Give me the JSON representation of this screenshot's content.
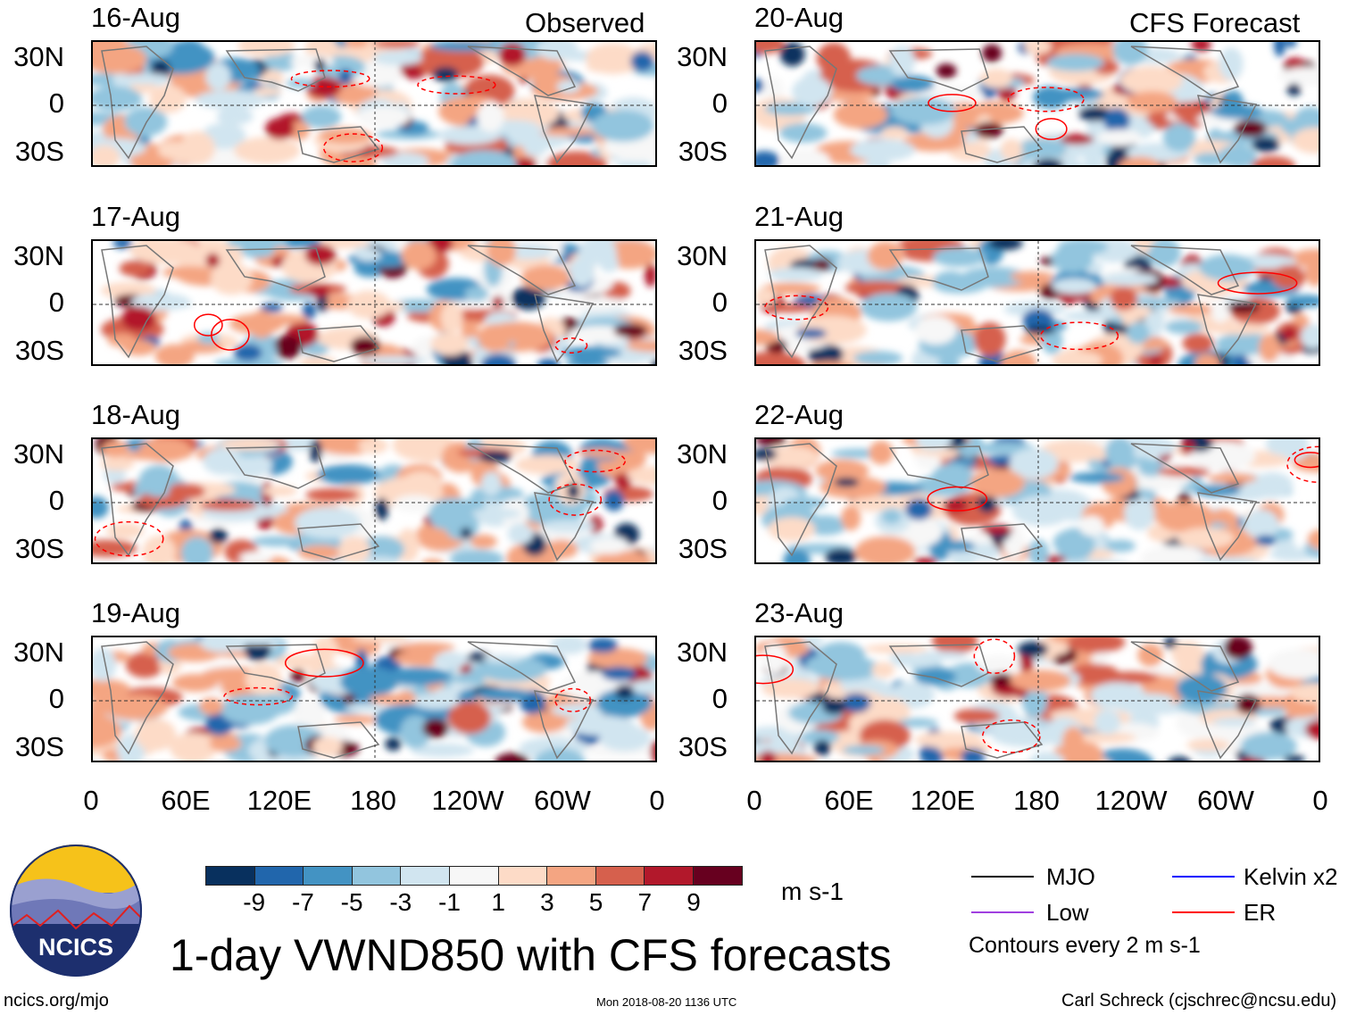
{
  "header": {
    "left_title": "Observed",
    "right_title": "CFS Forecast"
  },
  "panels_left": [
    {
      "date": "16-Aug"
    },
    {
      "date": "17-Aug"
    },
    {
      "date": "18-Aug"
    },
    {
      "date": "19-Aug"
    }
  ],
  "panels_right": [
    {
      "date": "20-Aug"
    },
    {
      "date": "21-Aug"
    },
    {
      "date": "22-Aug"
    },
    {
      "date": "23-Aug"
    }
  ],
  "y_axis": [
    "30N",
    "0",
    "30S"
  ],
  "x_axis": [
    "0",
    "60E",
    "120E",
    "180",
    "120W",
    "60W",
    "0"
  ],
  "colorbar": {
    "colors": [
      "#08305e",
      "#2166ac",
      "#4393c3",
      "#92c5de",
      "#d1e5f0",
      "#f7f7f7",
      "#fddbc7",
      "#f4a582",
      "#d6604d",
      "#b2182b",
      "#67001f"
    ],
    "labels": [
      "-9",
      "-7",
      "-5",
      "-3",
      "-1",
      "1",
      "3",
      "5",
      "7",
      "9"
    ],
    "units": "m s-1"
  },
  "legend": {
    "items": [
      {
        "label": "MJO",
        "color": "#000000"
      },
      {
        "label": "Low",
        "color": "#a040e0"
      },
      {
        "label": "Kelvin x2",
        "color": "#0000ff"
      },
      {
        "label": "ER",
        "color": "#ff0000"
      }
    ],
    "contours_note": "Contours every 2 m s-1"
  },
  "logo": {
    "text": "NCICS"
  },
  "title": "1-day VWND850 with CFS forecasts",
  "footer": {
    "url": "ncics.org/mjo",
    "timestamp": "Mon 2018-08-20 1136 UTC",
    "credit": "Carl Schreck (cjschrec@ncsu.edu)"
  }
}
